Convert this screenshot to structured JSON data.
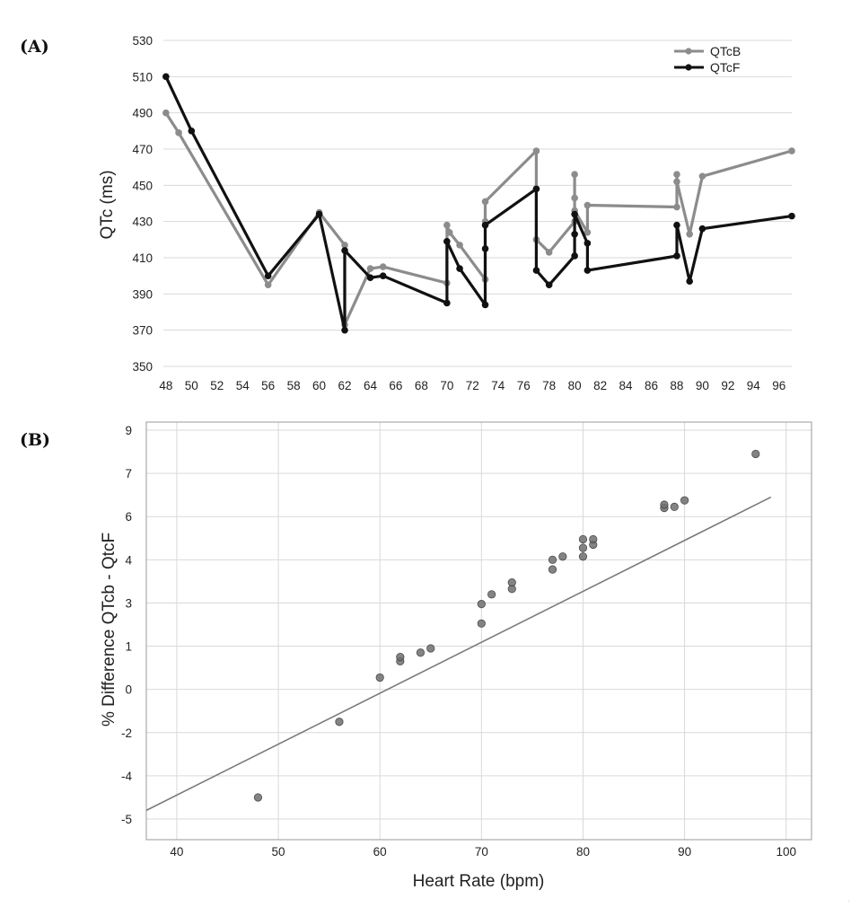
{
  "panels": {
    "a_label": "(A)",
    "b_label": "(B)"
  },
  "colors": {
    "qtcb": "#8c8c8c",
    "qtcf": "#111111",
    "scatter_point": "#6e6e6e",
    "fit_line": "#7a7a7a"
  },
  "chart_data": [
    {
      "type": "line",
      "panel": "(A)",
      "ylabel": "QTc (ms)",
      "ylim": [
        350,
        530
      ],
      "yticks": [
        350,
        370,
        390,
        410,
        430,
        450,
        470,
        490,
        510,
        530
      ],
      "xticks": [
        48,
        50,
        52,
        54,
        56,
        58,
        60,
        62,
        64,
        66,
        68,
        70,
        72,
        74,
        76,
        78,
        80,
        82,
        84,
        86,
        88,
        90,
        92,
        94,
        96
      ],
      "xlim": [
        47.8,
        97
      ],
      "grid": "horizontal",
      "legend_position": "top-right",
      "series": [
        {
          "name": "QTcB",
          "points": [
            [
              48,
              490
            ],
            [
              49,
              479
            ],
            [
              56,
              395
            ],
            [
              60,
              435
            ],
            [
              62,
              417
            ],
            [
              62,
              373
            ],
            [
              64,
              404
            ],
            [
              65,
              405
            ],
            [
              70,
              396
            ],
            [
              70,
              428
            ],
            [
              70.2,
              424
            ],
            [
              71,
              417
            ],
            [
              73,
              398
            ],
            [
              73,
              430
            ],
            [
              73,
              441
            ],
            [
              77,
              469
            ],
            [
              77,
              420
            ],
            [
              78,
              413
            ],
            [
              80,
              430
            ],
            [
              80,
              456
            ],
            [
              80,
              443
            ],
            [
              80,
              436
            ],
            [
              81,
              424
            ],
            [
              81,
              439
            ],
            [
              88,
              438
            ],
            [
              88,
              456
            ],
            [
              88,
              452
            ],
            [
              89,
              423
            ],
            [
              90,
              455
            ],
            [
              97,
              469
            ]
          ]
        },
        {
          "name": "QTcF",
          "points": [
            [
              48,
              510
            ],
            [
              50,
              480
            ],
            [
              56,
              400
            ],
            [
              60,
              434
            ],
            [
              62,
              370
            ],
            [
              62,
              414
            ],
            [
              64,
              399
            ],
            [
              65,
              400
            ],
            [
              70,
              385
            ],
            [
              70,
              419
            ],
            [
              71,
              404
            ],
            [
              73,
              384
            ],
            [
              73,
              415
            ],
            [
              73,
              428
            ],
            [
              77,
              448
            ],
            [
              77,
              403
            ],
            [
              78,
              395
            ],
            [
              80,
              411
            ],
            [
              80,
              423
            ],
            [
              80,
              434
            ],
            [
              81,
              418
            ],
            [
              81,
              403
            ],
            [
              88,
              411
            ],
            [
              88,
              428
            ],
            [
              89,
              397
            ],
            [
              90,
              426
            ],
            [
              97,
              433
            ]
          ]
        }
      ]
    },
    {
      "type": "scatter",
      "panel": "(B)",
      "xlabel": "Heart Rate (bpm)",
      "ylabel": "% Difference QTcb - QtcF",
      "xlim": [
        37,
        102.5
      ],
      "xticks": [
        40,
        50,
        60,
        70,
        80,
        90,
        100
      ],
      "ytick_labels": [
        "-5",
        "-4",
        "-2",
        "0",
        "1",
        "3",
        "4",
        "6",
        "7",
        "9"
      ],
      "grid": "both",
      "fit_line": {
        "from": [
          37,
          -5.2
        ],
        "to": [
          98.5,
          9.3
        ]
      },
      "points": [
        [
          48,
          -4.6
        ],
        [
          56,
          -1.1
        ],
        [
          60,
          0.95
        ],
        [
          62,
          1.7
        ],
        [
          62,
          1.9
        ],
        [
          64,
          2.1
        ],
        [
          65,
          2.3
        ],
        [
          70,
          4.35
        ],
        [
          70,
          3.45
        ],
        [
          71,
          4.8
        ],
        [
          73,
          5.05
        ],
        [
          73,
          5.35
        ],
        [
          77,
          5.95
        ],
        [
          77,
          6.4
        ],
        [
          78,
          6.55
        ],
        [
          80,
          6.55
        ],
        [
          80,
          6.95
        ],
        [
          80,
          7.35
        ],
        [
          81,
          7.1
        ],
        [
          81,
          7.35
        ],
        [
          88,
          8.8
        ],
        [
          88,
          8.95
        ],
        [
          89,
          8.85
        ],
        [
          90,
          9.15
        ],
        [
          97,
          11.3
        ]
      ],
      "point_scale": {
        "value_at_first_label": -5.6,
        "value_at_last_label": 12.4
      }
    }
  ]
}
